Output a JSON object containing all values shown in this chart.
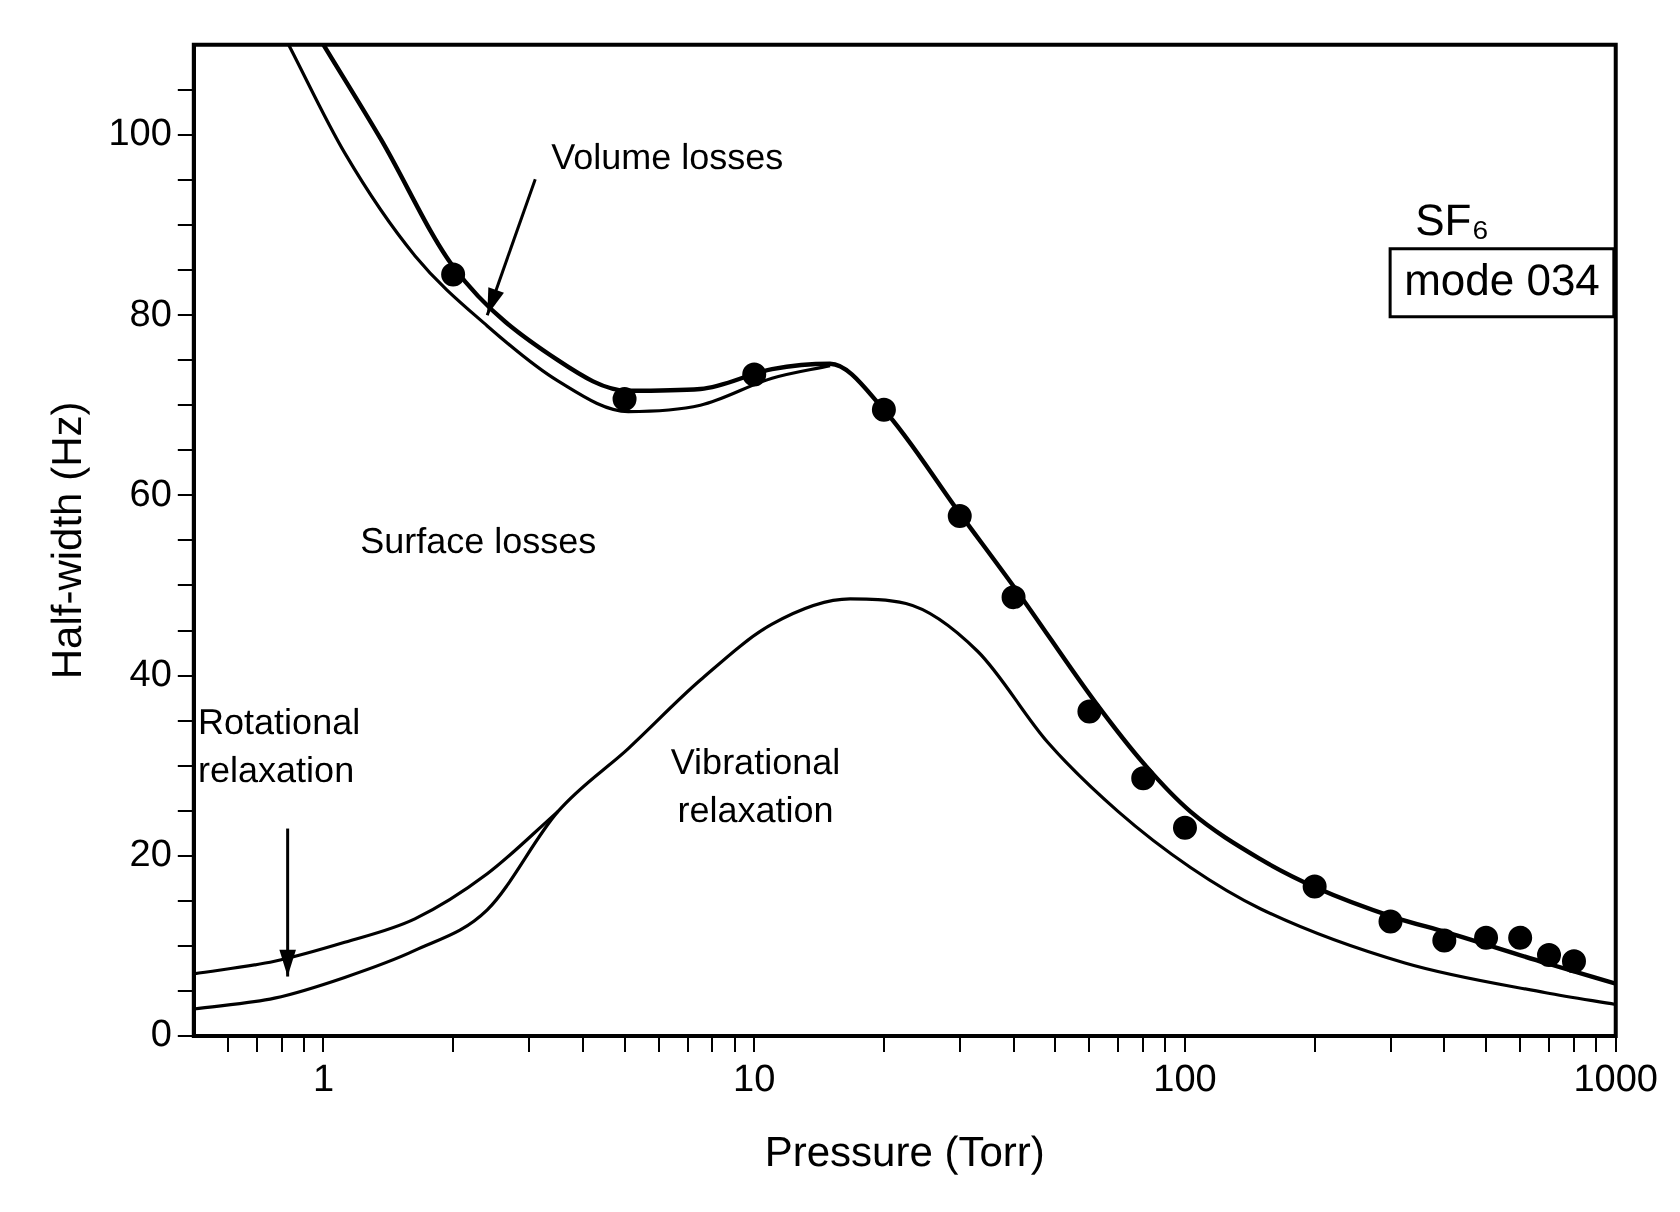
{
  "chart_data": {
    "type": "line",
    "xlabel": "Pressure (Torr)",
    "ylabel": "Half-width (Hz)",
    "log": "x",
    "xlim": [
      0.5,
      1000
    ],
    "ylim": [
      0,
      110
    ],
    "xticks": [
      {
        "value": 0.6,
        "label": null
      },
      {
        "value": 0.7,
        "label": null
      },
      {
        "value": 0.8,
        "label": null
      },
      {
        "value": 0.9,
        "label": null
      },
      1,
      {
        "value": 2,
        "label": null
      },
      {
        "value": 3,
        "label": null
      },
      {
        "value": 4,
        "label": null
      },
      {
        "value": 5,
        "label": null
      },
      {
        "value": 6,
        "label": null
      },
      {
        "value": 7,
        "label": null
      },
      {
        "value": 8,
        "label": null
      },
      {
        "value": 9,
        "label": null
      },
      10,
      {
        "value": 20,
        "label": null
      },
      {
        "value": 30,
        "label": null
      },
      {
        "value": 40,
        "label": null
      },
      {
        "value": 50,
        "label": null
      },
      {
        "value": 60,
        "label": null
      },
      {
        "value": 70,
        "label": null
      },
      {
        "value": 80,
        "label": null
      },
      {
        "value": 90,
        "label": null
      },
      100,
      {
        "value": 200,
        "label": null
      },
      {
        "value": 300,
        "label": null
      },
      {
        "value": 400,
        "label": null
      },
      {
        "value": 500,
        "label": null
      },
      {
        "value": 600,
        "label": null
      },
      {
        "value": 700,
        "label": null
      },
      {
        "value": 800,
        "label": null
      },
      {
        "value": 900,
        "label": null
      },
      1000
    ],
    "yticks": [
      0,
      {
        "value": 5,
        "label": null
      },
      20,
      {
        "value": 15,
        "label": null
      },
      {
        "value": 10,
        "label": null
      },
      {
        "value": 25,
        "label": null
      },
      {
        "value": 30,
        "label": null
      },
      {
        "value": 35,
        "label": null
      },
      40,
      {
        "value": 45,
        "label": null
      },
      {
        "value": 50,
        "label": null
      },
      {
        "value": 55,
        "label": null
      },
      60,
      {
        "value": 65,
        "label": null
      },
      {
        "value": 70,
        "label": null
      },
      {
        "value": 75,
        "label": null
      },
      80,
      {
        "value": 85,
        "label": null
      },
      {
        "value": 90,
        "label": null
      },
      {
        "value": 95,
        "label": null
      },
      100,
      {
        "value": 105,
        "label": null
      }
    ],
    "grid": false,
    "legend": false,
    "series": [
      {
        "color": "#000000",
        "marker": "none",
        "x": [
          1,
          1.36,
          2,
          3.5,
          5.1,
          7.5,
          11,
          15,
          20,
          30,
          41,
          62,
          81,
          103,
          150,
          203,
          305,
          405,
          688,
          1000
        ],
        "values": [
          110,
          99.5,
          85.4,
          75,
          71.6,
          71.8,
          74,
          74.6,
          69.5,
          58,
          49.2,
          37,
          30,
          24.9,
          19.6,
          16.4,
          13.2,
          11.5,
          8.1,
          5.8
        ]
      },
      {
        "color": "#000000",
        "marker": "none",
        "x": [
          0.83,
          1.12,
          1.63,
          2.4,
          3.5,
          5.1,
          7.5,
          11,
          15
        ],
        "values": [
          110,
          98,
          86.6,
          78.8,
          72.7,
          69.3,
          70,
          73,
          74.4
        ]
      },
      {
        "color": "#000000",
        "marker": "none",
        "x": [
          0.5,
          0.77,
          1.12,
          1.63,
          2.4,
          3.5,
          5.1,
          7.5,
          11,
          16.7,
          22.5,
          33,
          48,
          70,
          103,
          150,
          324,
          688,
          1000
        ],
        "values": [
          3,
          4.2,
          6.5,
          9.5,
          14,
          24.9,
          31.9,
          39.5,
          45.7,
          48.5,
          48,
          42.7,
          32.6,
          24.9,
          18.7,
          14.1,
          8.1,
          4.8,
          3.5
        ]
      },
      {
        "color": "#000000",
        "marker": "none",
        "x": [
          0.5,
          0.77,
          1.12,
          1.63,
          2.4,
          3.5
        ],
        "values": [
          6.9,
          8.3,
          10.4,
          13,
          18,
          24.9
        ]
      },
      {
        "type": "scatter",
        "color": "#000000",
        "marker": "circle",
        "x": [
          2,
          5,
          10,
          20,
          30,
          40,
          60,
          80,
          100,
          200,
          300,
          400,
          500,
          600,
          700,
          800
        ],
        "values": [
          84.5,
          70.7,
          73.4,
          69.5,
          57.7,
          48.7,
          36,
          28.6,
          23.1,
          16.6,
          12.7,
          10.6,
          10.9,
          10.9,
          9,
          8.3
        ]
      }
    ],
    "annotations": [
      {
        "text": "Volume losses",
        "x": 2.4,
        "y": 80
      },
      "Rotational relaxation",
      "Surface losses",
      "Vibrational relaxation",
      "SF₆",
      "mode 034"
    ]
  }
}
